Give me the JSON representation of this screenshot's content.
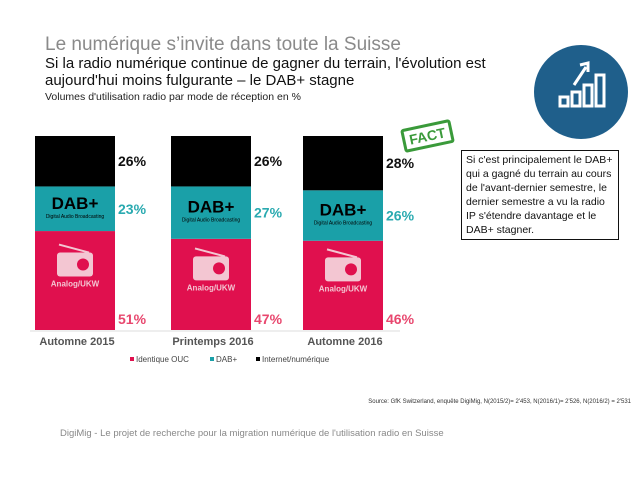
{
  "header": {
    "title": "Le numérique s’invite dans toute la Suisse",
    "subtitle": "Si la radio numérique continue de gagner du terrain, l'évolution est aujourd'hui moins fulgurante – le DAB+ stagne",
    "note": "Volumes d'utilisation radio par mode de réception en %"
  },
  "chart_data": {
    "type": "bar",
    "stacked": true,
    "title": "",
    "categories": [
      "Automne 2015",
      "Printemps 2016",
      "Automne 2016"
    ],
    "series": [
      {
        "name": "Identique OUC",
        "values": [
          51,
          47,
          46
        ],
        "color": "#e0104e",
        "label_color": "#e8476e",
        "inner_label": "Analog/UKW"
      },
      {
        "name": "DAB+",
        "values": [
          23,
          27,
          26
        ],
        "color": "#1aa0a8",
        "label_color": "#2aaab0",
        "inner_label": "DAB+",
        "inner_sublabel": "Digital Audio Broadcasting"
      },
      {
        "name": "Internet/numérique",
        "values": [
          26,
          26,
          28
        ],
        "color": "#000000",
        "label_color": "#111111"
      }
    ],
    "ylim": [
      0,
      100
    ],
    "legend": "bottom"
  },
  "fact": {
    "stamp": "FACT",
    "text": "Si c'est principalement le DAB+ qui a gagné du terrain au cours de l'avant-dernier semestre, le dernier semestre a vu la radio IP s'étendre davantage et le DAB+ stagner."
  },
  "icon": "growth-chart-icon",
  "source": "Source: GfK Switzerland, enquête DigiMig, N(2015/2)= 2'453, N(2016/1)= 2'526, N(2016/2) = 2'531",
  "footer": "DigiMig - Le projet de recherche pour la migration numérique de l'utilisation radio en Suisse"
}
